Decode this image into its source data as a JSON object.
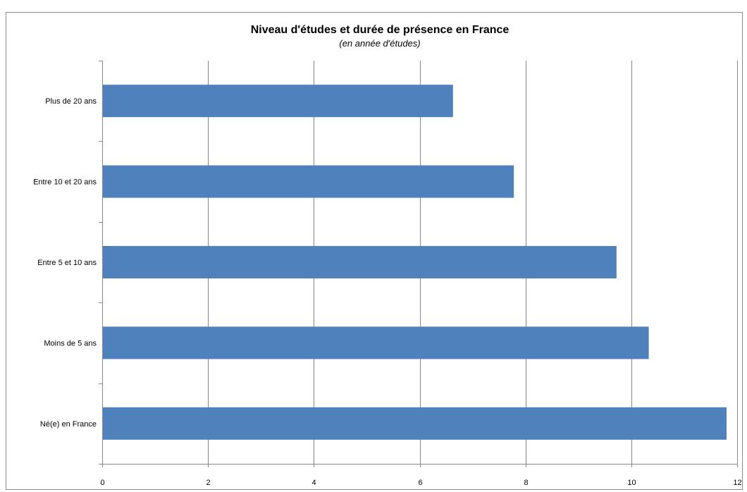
{
  "chart_data": {
    "type": "bar",
    "orientation": "horizontal",
    "title": "Niveau d'études et durée de présence en France",
    "subtitle": "(en année d'études)",
    "categories": [
      "Plus de 20 ans",
      "Entre 10 et 20 ans",
      "Entre 5 et 10 ans",
      "Moins de 5 ans",
      "Né(e) en France"
    ],
    "values": [
      6.63,
      7.78,
      9.72,
      10.33,
      11.8
    ],
    "xlim": [
      0,
      12
    ],
    "xticks": [
      0,
      2,
      4,
      6,
      8,
      10,
      12
    ],
    "grid": true,
    "legend": "none",
    "bar_color": "#4f81bd",
    "grid_color": "#878787"
  }
}
